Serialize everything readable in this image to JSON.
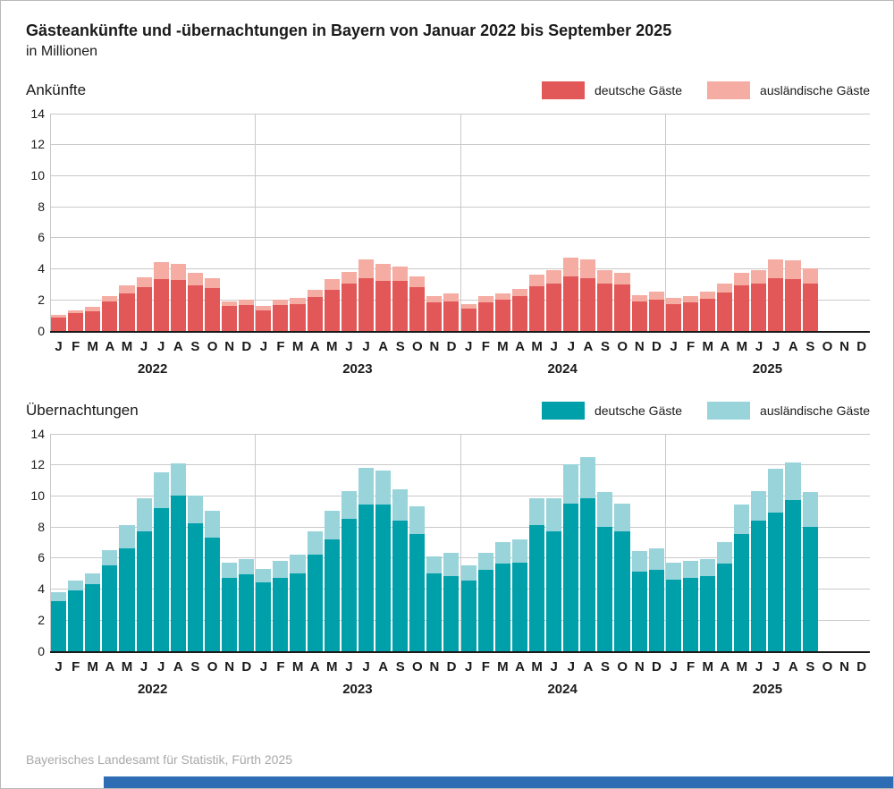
{
  "header": {
    "title": "Gästeankünfte und -übernachtungen in Bayern von Januar 2022 bis September 2025",
    "subtitle": "in Millionen"
  },
  "footer": {
    "source": "Bayerisches Landesamt für Statistik, Fürth 2025"
  },
  "colors": {
    "arrivals_domestic": "#e25858",
    "arrivals_foreign": "#f4aca3",
    "nights_domestic": "#00a0aa",
    "nights_foreign": "#98d4da",
    "grid": "#c9c9c9",
    "axis": "#1a1a1a",
    "footer_text": "#a8a8a8",
    "accent_bar": "#2e6db4"
  },
  "month_letters": [
    "J",
    "F",
    "M",
    "A",
    "M",
    "J",
    "J",
    "A",
    "S",
    "O",
    "N",
    "D"
  ],
  "years": [
    "2022",
    "2023",
    "2024",
    "2025"
  ],
  "chart_data": [
    {
      "type": "bar",
      "stacked": true,
      "title": "Ankünfte",
      "ylabel": "in Millionen",
      "ylim": [
        0,
        14
      ],
      "ytick_step": 2,
      "legend": [
        {
          "label": "deutsche Gäste",
          "color": "#e25858"
        },
        {
          "label": "ausländische Gäste",
          "color": "#f4aca3"
        }
      ],
      "series": [
        {
          "name": "deutsche Gäste",
          "color": "#e25858",
          "values": [
            0.85,
            1.1,
            1.25,
            1.85,
            2.4,
            2.8,
            3.3,
            3.25,
            2.9,
            2.75,
            1.6,
            1.65,
            1.3,
            1.65,
            1.7,
            2.15,
            2.6,
            3.0,
            3.4,
            3.2,
            3.2,
            2.8,
            1.8,
            1.9,
            1.4,
            1.8,
            2.0,
            2.2,
            2.85,
            3.05,
            3.5,
            3.35,
            3.05,
            2.95,
            1.9,
            2.0,
            1.7,
            1.8,
            2.05,
            2.45,
            2.9,
            3.05,
            3.4,
            3.3,
            3.0,
            null,
            null,
            null
          ]
        },
        {
          "name": "ausländische Gäste",
          "color": "#f4aca3",
          "values": [
            0.15,
            0.2,
            0.25,
            0.35,
            0.5,
            0.65,
            1.1,
            1.05,
            0.8,
            0.65,
            0.3,
            0.35,
            0.3,
            0.35,
            0.4,
            0.45,
            0.7,
            0.8,
            1.2,
            1.1,
            0.9,
            0.7,
            0.4,
            0.5,
            0.3,
            0.4,
            0.4,
            0.5,
            0.75,
            0.85,
            1.2,
            1.25,
            0.85,
            0.75,
            0.4,
            0.5,
            0.4,
            0.4,
            0.45,
            0.55,
            0.8,
            0.85,
            1.2,
            1.2,
            1.0,
            null,
            null,
            null
          ]
        }
      ]
    },
    {
      "type": "bar",
      "stacked": true,
      "title": "Übernachtungen",
      "ylabel": "in Millionen",
      "ylim": [
        0,
        14
      ],
      "ytick_step": 2,
      "legend": [
        {
          "label": "deutsche Gäste",
          "color": "#00a0aa"
        },
        {
          "label": "ausländische Gäste",
          "color": "#98d4da"
        }
      ],
      "series": [
        {
          "name": "deutsche Gäste",
          "color": "#00a0aa",
          "values": [
            3.2,
            3.9,
            4.3,
            5.5,
            6.6,
            7.7,
            9.2,
            10.0,
            8.2,
            7.3,
            4.7,
            4.9,
            4.4,
            4.7,
            5.0,
            6.2,
            7.2,
            8.5,
            9.4,
            9.4,
            8.4,
            7.5,
            5.0,
            4.8,
            4.5,
            5.2,
            5.6,
            5.7,
            8.1,
            7.7,
            9.5,
            9.8,
            8.0,
            7.7,
            5.1,
            5.2,
            4.6,
            4.7,
            4.8,
            5.6,
            7.5,
            8.4,
            8.9,
            9.7,
            8.0,
            null,
            null,
            null
          ]
        },
        {
          "name": "ausländische Gäste",
          "color": "#98d4da",
          "values": [
            0.6,
            0.6,
            0.7,
            1.0,
            1.5,
            2.1,
            2.3,
            2.1,
            1.8,
            1.7,
            1.0,
            1.0,
            0.9,
            1.1,
            1.2,
            1.5,
            1.8,
            1.8,
            2.4,
            2.2,
            2.0,
            1.8,
            1.1,
            1.5,
            1.0,
            1.1,
            1.4,
            1.5,
            1.7,
            2.1,
            2.5,
            2.7,
            2.2,
            1.8,
            1.3,
            1.4,
            1.1,
            1.1,
            1.1,
            1.4,
            1.9,
            1.9,
            2.8,
            2.4,
            2.2,
            null,
            null,
            null
          ]
        }
      ]
    }
  ]
}
